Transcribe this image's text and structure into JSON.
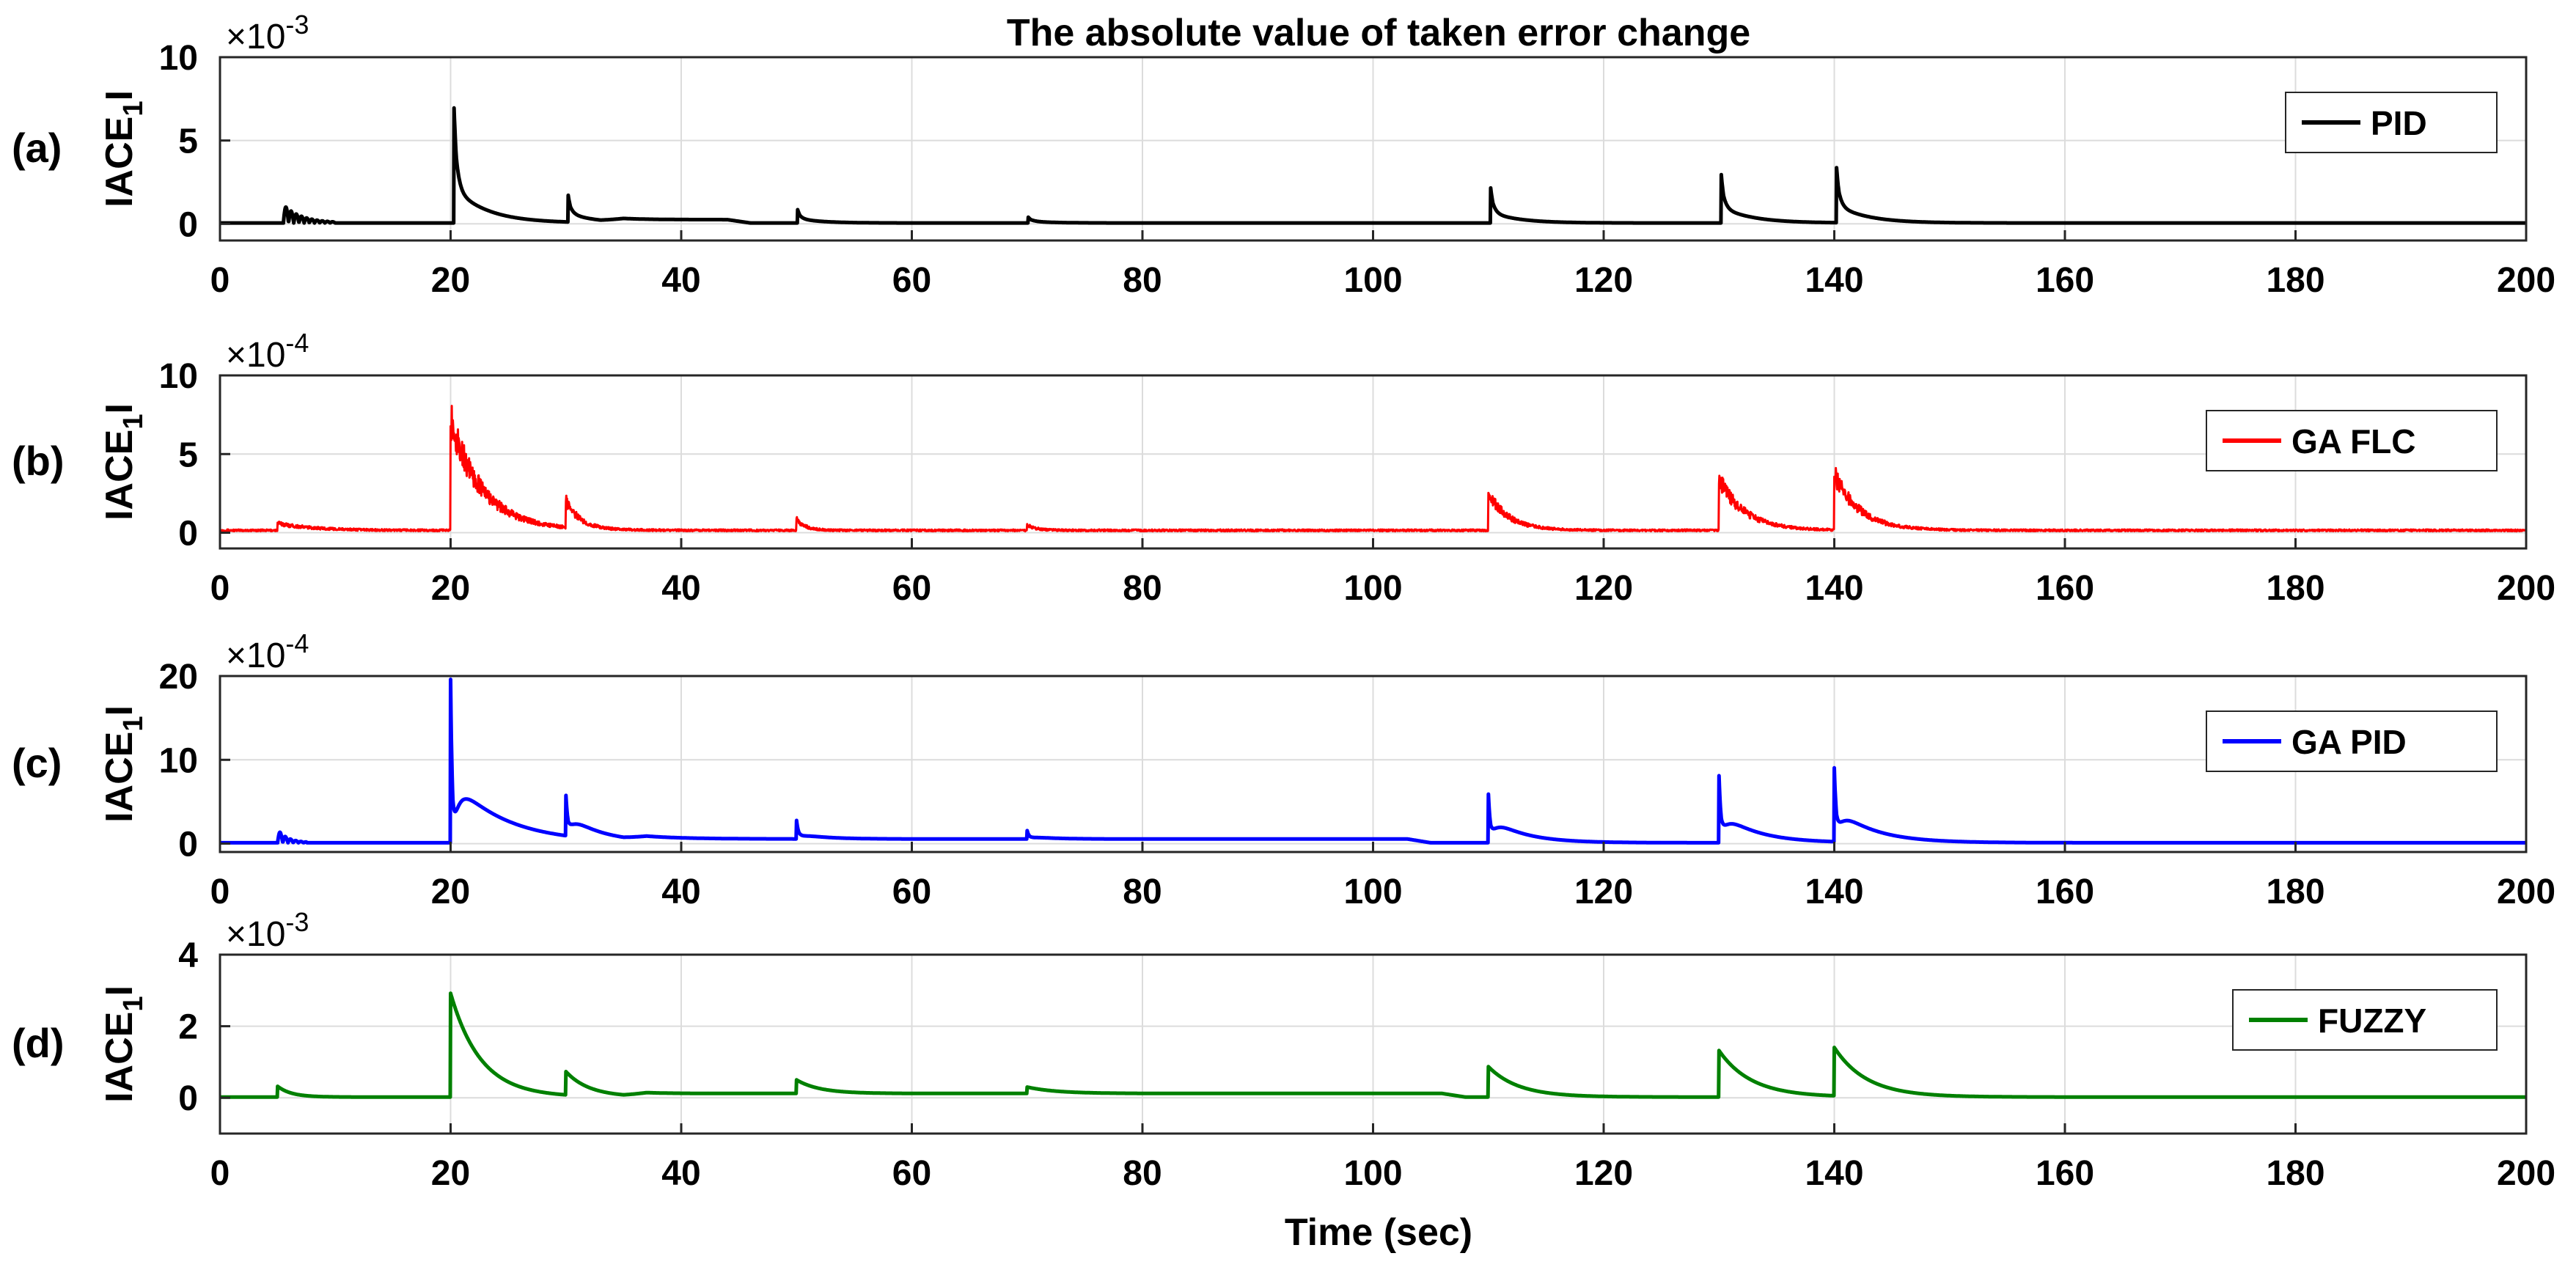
{
  "figure": {
    "title": "The absolute value of taken error change",
    "xlabel": "Time (sec)"
  },
  "colors": {
    "grid": "#dcdcdc",
    "axis": "#262626",
    "text": "#000000"
  },
  "chart_data": [
    {
      "type": "line",
      "panel_label": "(a)",
      "ylabel_main": "IACE",
      "ylabel_sub": "1",
      "ylabel_end": "I",
      "exp_base": "×10",
      "exp_power": "-3",
      "xlim": [
        0,
        200
      ],
      "ylim": [
        -1,
        10
      ],
      "xticks": [
        0,
        20,
        40,
        60,
        80,
        100,
        120,
        140,
        160,
        180,
        200
      ],
      "yticks": [
        0,
        5,
        10
      ],
      "legend": "PID",
      "legend_position": "top-right",
      "color": "#000000",
      "base": 0.05,
      "style": "smooth",
      "oscillations": [
        {
          "t": 5.5,
          "amp": 1.1,
          "dur": 4.5
        }
      ],
      "events": [
        {
          "t": 20.3,
          "peak": 6.9,
          "tau": 0.35,
          "tail": 2.0,
          "tailTau": 2.8
        },
        {
          "t": 30.2,
          "peak": 1.6,
          "tau": 0.35,
          "tail": 0.5,
          "tailTau": 2.2
        },
        {
          "t": 50.1,
          "peak": 0.8,
          "tau": 0.35,
          "tail": 0.25,
          "tailTau": 2.0
        },
        {
          "t": 70.1,
          "peak": 0.35,
          "tau": 0.4,
          "tail": 0.1,
          "tailTau": 2.0
        },
        {
          "t": 110.2,
          "peak": 2.1,
          "tau": 0.35,
          "tail": 0.6,
          "tailTau": 2.4
        },
        {
          "t": 130.2,
          "peak": 2.9,
          "tau": 0.35,
          "tail": 0.9,
          "tailTau": 2.6
        },
        {
          "t": 140.2,
          "peak": 3.3,
          "tau": 0.35,
          "tail": 1.0,
          "tailTau": 2.6
        }
      ],
      "plateaus": [
        {
          "from": 33,
          "to": 46,
          "level": 0.2
        }
      ]
    },
    {
      "type": "line",
      "panel_label": "(b)",
      "ylabel_main": "IACE",
      "ylabel_sub": "1",
      "ylabel_end": "I",
      "exp_base": "×10",
      "exp_power": "-4",
      "xlim": [
        0,
        200
      ],
      "ylim": [
        -1,
        10
      ],
      "xticks": [
        0,
        20,
        40,
        60,
        80,
        100,
        120,
        140,
        160,
        180,
        200
      ],
      "yticks": [
        0,
        5,
        10
      ],
      "legend": "GA FLC",
      "legend_position": "top-right",
      "color": "#ff0000",
      "base": 0.15,
      "style": "noisy",
      "noise": 0.12,
      "oscillations": [],
      "events": [
        {
          "t": 5.0,
          "peak": 0.45,
          "tau": 3.0,
          "tail": 0,
          "tailTau": 1
        },
        {
          "t": 20.0,
          "peak": 7.0,
          "tau": 2.8,
          "tail": 0,
          "tailTau": 1
        },
        {
          "t": 30.0,
          "peak": 1.7,
          "tau": 1.2,
          "tail": 0,
          "tailTau": 1
        },
        {
          "t": 50.0,
          "peak": 0.7,
          "tau": 0.8,
          "tail": 0,
          "tailTau": 1
        },
        {
          "t": 70.0,
          "peak": 0.35,
          "tau": 0.8,
          "tail": 0,
          "tailTau": 1
        },
        {
          "t": 110.0,
          "peak": 2.3,
          "tau": 1.8,
          "tail": 0,
          "tailTau": 1
        },
        {
          "t": 130.0,
          "peak": 3.3,
          "tau": 2.2,
          "tail": 0,
          "tailTau": 1
        },
        {
          "t": 140.0,
          "peak": 3.5,
          "tau": 2.2,
          "tail": 0,
          "tailTau": 1
        }
      ],
      "plateaus": []
    },
    {
      "type": "line",
      "panel_label": "(c)",
      "ylabel_main": "IACE",
      "ylabel_sub": "1",
      "ylabel_end": "I",
      "exp_base": "×10",
      "exp_power": "-4",
      "xlim": [
        0,
        200
      ],
      "ylim": [
        -1,
        20
      ],
      "xticks": [
        0,
        20,
        40,
        60,
        80,
        100,
        120,
        140,
        160,
        180,
        200
      ],
      "yticks": [
        0,
        10,
        20
      ],
      "legend": "GA PID",
      "legend_position": "top-right",
      "color": "#0000ff",
      "base": 0.1,
      "style": "smooth",
      "oscillations": [
        {
          "t": 5.0,
          "amp": 1.6,
          "dur": 2.5
        }
      ],
      "events": [
        {
          "t": 20.0,
          "peak": 19.5,
          "tau": 0.15,
          "tail": 7.5,
          "tailTau": 4.5
        },
        {
          "t": 30.0,
          "peak": 4.8,
          "tau": 0.2,
          "tail": 2.6,
          "tailTau": 2.5
        },
        {
          "t": 50.0,
          "peak": 2.2,
          "tau": 0.2,
          "tail": 0.6,
          "tailTau": 2.2
        },
        {
          "t": 70.0,
          "peak": 1.0,
          "tau": 0.2,
          "tail": 0.3,
          "tailTau": 2.0
        },
        {
          "t": 110.0,
          "peak": 5.8,
          "tau": 0.2,
          "tail": 3.0,
          "tailTau": 2.8
        },
        {
          "t": 130.0,
          "peak": 8.0,
          "tau": 0.2,
          "tail": 3.6,
          "tailTau": 3.0
        },
        {
          "t": 140.0,
          "peak": 8.8,
          "tau": 0.2,
          "tail": 4.0,
          "tailTau": 3.2
        }
      ],
      "plateaus": [
        {
          "from": 35,
          "to": 105,
          "level": 0.45
        }
      ]
    },
    {
      "type": "line",
      "panel_label": "(d)",
      "ylabel_main": "IACE",
      "ylabel_sub": "1",
      "ylabel_end": "I",
      "exp_base": "×10",
      "exp_power": "-3",
      "xlim": [
        0,
        200
      ],
      "ylim": [
        -1,
        4
      ],
      "xticks": [
        0,
        20,
        40,
        60,
        80,
        100,
        120,
        140,
        160,
        180,
        200
      ],
      "yticks": [
        0,
        2,
        4
      ],
      "legend": "FUZZY",
      "legend_position": "top-right",
      "color": "#008000",
      "base": 0.02,
      "style": "smooth",
      "oscillations": [],
      "events": [
        {
          "t": 5.0,
          "peak": 0.3,
          "tau": 1.2,
          "tail": 0,
          "tailTau": 1
        },
        {
          "t": 20.0,
          "peak": 2.9,
          "tau": 2.6,
          "tail": 0,
          "tailTau": 1
        },
        {
          "t": 30.0,
          "peak": 0.65,
          "tau": 2.0,
          "tail": 0,
          "tailTau": 1
        },
        {
          "t": 50.0,
          "peak": 0.38,
          "tau": 2.0,
          "tail": 0,
          "tailTau": 1
        },
        {
          "t": 70.0,
          "peak": 0.18,
          "tau": 2.5,
          "tail": 0,
          "tailTau": 1
        },
        {
          "t": 110.0,
          "peak": 0.85,
          "tau": 2.6,
          "tail": 0,
          "tailTau": 1
        },
        {
          "t": 130.0,
          "peak": 1.3,
          "tau": 2.8,
          "tail": 0,
          "tailTau": 1
        },
        {
          "t": 140.0,
          "peak": 1.35,
          "tau": 2.8,
          "tail": 0,
          "tailTau": 1
        }
      ],
      "plateaus": [
        {
          "from": 35,
          "to": 108,
          "level": 0.1
        }
      ]
    }
  ]
}
